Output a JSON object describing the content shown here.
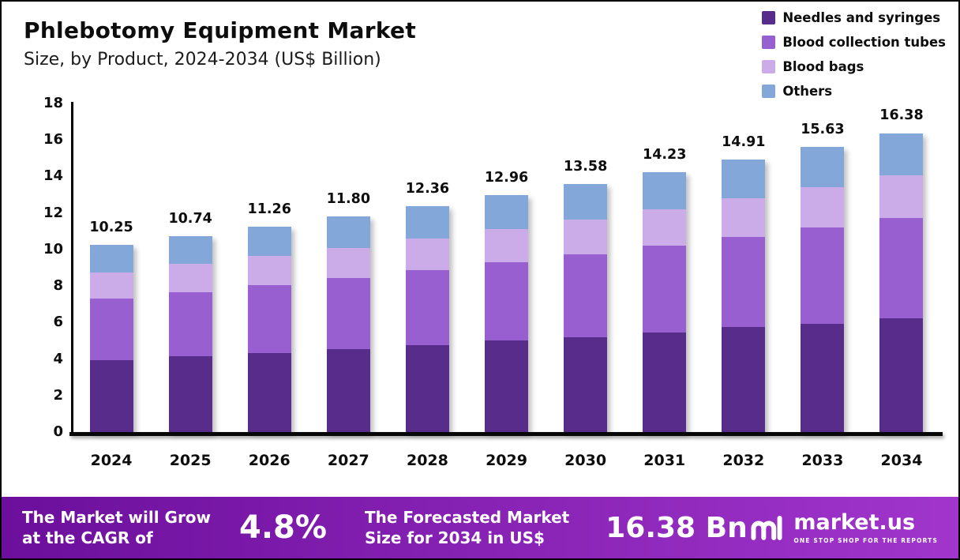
{
  "header": {
    "title": "Phlebotomy Equipment Market",
    "subtitle": "Size, by Product, 2024-2034 (US$ Billion)"
  },
  "chart_data": {
    "type": "bar",
    "stacked": true,
    "title": "Phlebotomy Equipment Market Size, by Product, 2024-2034 (US$ Billion)",
    "categories": [
      "2024",
      "2025",
      "2026",
      "2027",
      "2028",
      "2029",
      "2030",
      "2031",
      "2032",
      "2033",
      "2034"
    ],
    "series": [
      {
        "name": "Needles and syringes",
        "color": "#582c8b",
        "values": [
          3.95,
          4.15,
          4.35,
          4.55,
          4.75,
          5.0,
          5.2,
          5.45,
          5.75,
          5.95,
          6.25
        ]
      },
      {
        "name": "Blood collection tubes",
        "color": "#985fd1",
        "values": [
          3.35,
          3.5,
          3.7,
          3.9,
          4.1,
          4.3,
          4.55,
          4.75,
          4.95,
          5.25,
          5.5
        ]
      },
      {
        "name": "Blood bags",
        "color": "#cbabe8",
        "values": [
          1.45,
          1.55,
          1.6,
          1.65,
          1.75,
          1.8,
          1.9,
          2.0,
          2.1,
          2.2,
          2.3
        ]
      },
      {
        "name": "Others",
        "color": "#84a7d9",
        "values": [
          1.5,
          1.54,
          1.61,
          1.7,
          1.76,
          1.86,
          1.93,
          2.03,
          2.11,
          2.23,
          2.33
        ]
      }
    ],
    "totals": [
      10.25,
      10.74,
      11.26,
      11.8,
      12.36,
      12.96,
      13.58,
      14.23,
      14.91,
      15.63,
      16.38
    ],
    "ylim": [
      0,
      18
    ],
    "ytick_step": 2,
    "grid": false,
    "legend_position": "top-right"
  },
  "footer": {
    "cagr_label_line1": "The Market will Grow",
    "cagr_label_line2": "at the CAGR of",
    "cagr_value": "4.8%",
    "forecast_label_line1": "The Forecasted Market",
    "forecast_label_line2": "Size for 2034 in US$",
    "forecast_value": "16.38 Bn",
    "brand_name": "market.us",
    "brand_tagline": "ONE STOP SHOP FOR THE REPORTS",
    "gradient": [
      "#6c0f9c",
      "#a135cc"
    ]
  }
}
